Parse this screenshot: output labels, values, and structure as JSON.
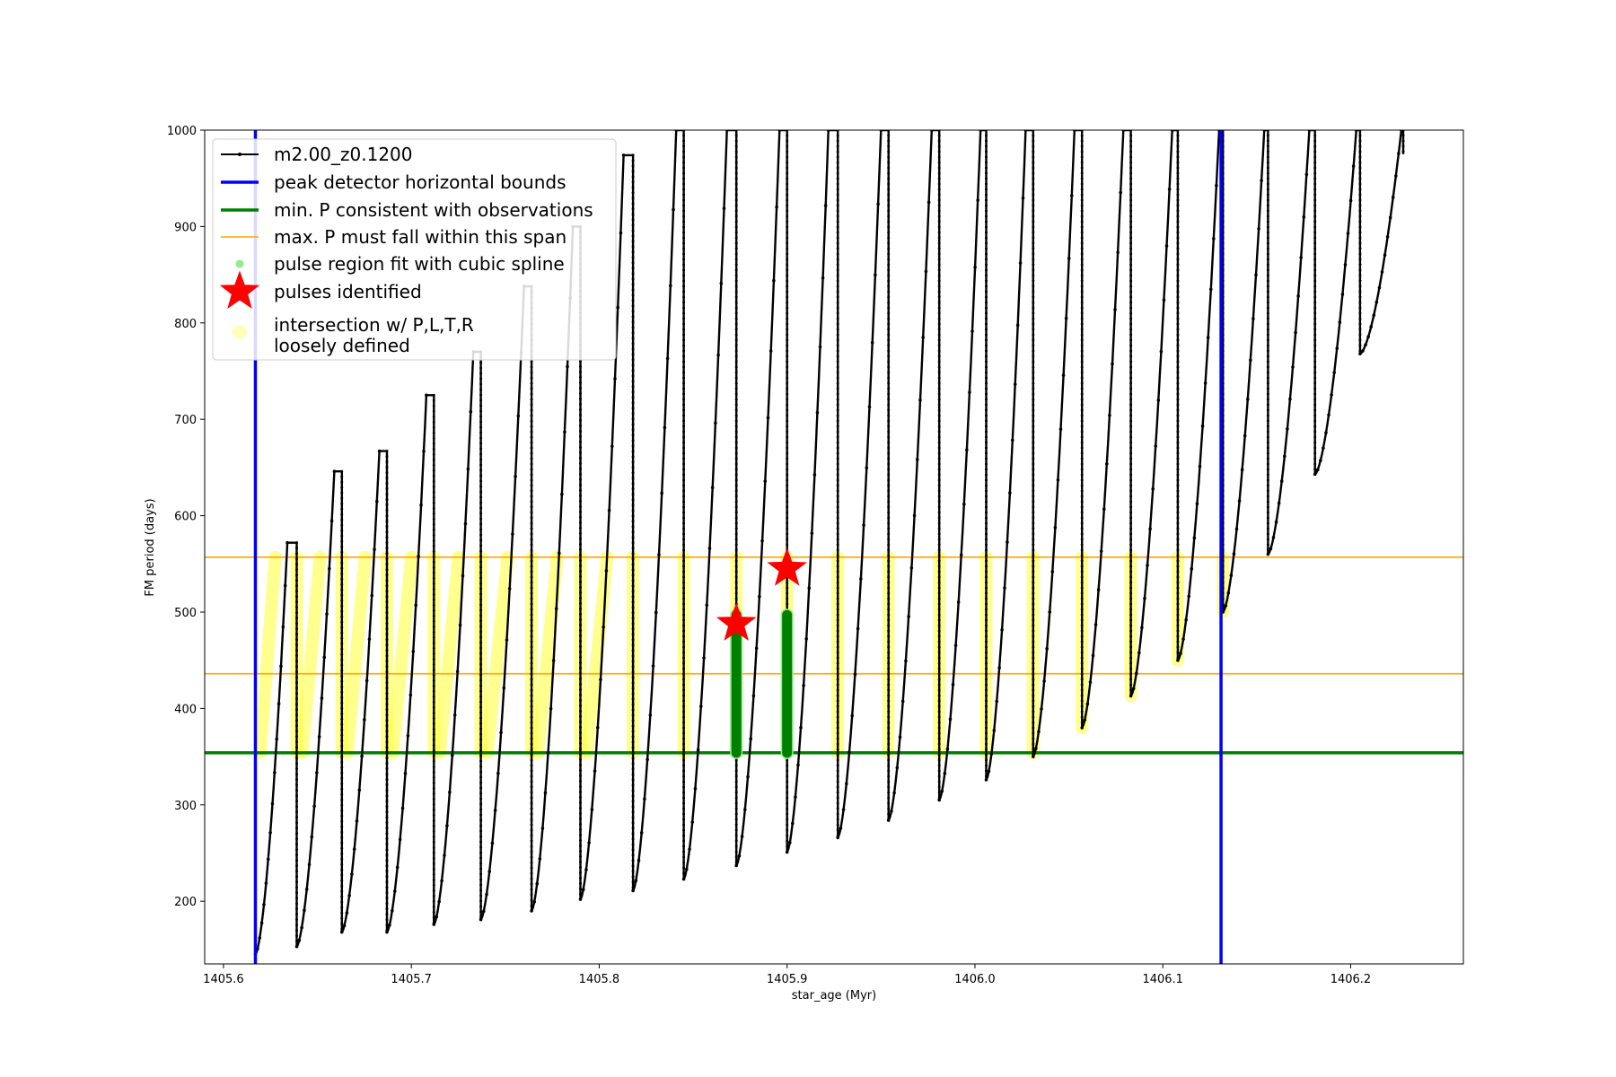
{
  "chart_data": {
    "type": "line",
    "xlabel": "star_age (Myr)",
    "ylabel": "FM period (days)",
    "xlim": [
      1405.59,
      1406.26
    ],
    "ylim": [
      135,
      1000
    ],
    "x_ticks": [
      1405.6,
      1405.7,
      1405.8,
      1405.9,
      1406.0,
      1406.1,
      1406.2
    ],
    "x_tick_labels": [
      "1405.6",
      "1405.7",
      "1405.8",
      "1405.9",
      "1406.0",
      "1406.1",
      "1406.2"
    ],
    "y_ticks": [
      200,
      300,
      400,
      500,
      600,
      700,
      800,
      900,
      1000
    ],
    "y_tick_labels": [
      "200",
      "300",
      "400",
      "500",
      "600",
      "700",
      "800",
      "900",
      "1000"
    ],
    "grid": false,
    "legend_position": "top-left",
    "legend": [
      {
        "label": "m2.00_z0.1200",
        "marker": "line-dot",
        "color": "#000000"
      },
      {
        "label": "peak detector horizontal bounds",
        "marker": "line",
        "color": "#0000ff"
      },
      {
        "label": "min. P consistent with observations",
        "marker": "line",
        "color": "#008000"
      },
      {
        "label": "max. P must fall within this span",
        "marker": "thin-line",
        "color": "#ffa500"
      },
      {
        "label": "pulse region fit with cubic spline",
        "marker": "dot",
        "color": "#90ee90"
      },
      {
        "label": "pulses identified",
        "marker": "star",
        "color": "#ff0000"
      },
      {
        "label": "intersection w/ P,L,T,R\nloosely defined",
        "marker": "circle",
        "color": "#ffffa0"
      }
    ],
    "vlines": [
      {
        "x": 1405.617,
        "color": "#0000ff"
      },
      {
        "x": 1406.131,
        "color": "#0000ff"
      }
    ],
    "hlines": [
      {
        "y": 354,
        "color": "#008000",
        "role": "min"
      },
      {
        "y": 436,
        "color": "#ffa500",
        "role": "max-low"
      },
      {
        "y": 557,
        "color": "#ffa500",
        "role": "max-high"
      }
    ],
    "cycles": [
      {
        "start": 1405.617,
        "peak_x": 1405.634,
        "peak": 572,
        "drop": 1405.639,
        "drop_min": 153,
        "start_y": 145
      },
      {
        "start": 1405.639,
        "peak_x": 1405.659,
        "peak": 646,
        "drop": 1405.663,
        "drop_min": 168,
        "start_y": 153
      },
      {
        "start": 1405.663,
        "peak_x": 1405.683,
        "peak": 667,
        "drop": 1405.687,
        "drop_min": 168,
        "start_y": 168
      },
      {
        "start": 1405.687,
        "peak_x": 1405.708,
        "peak": 725,
        "drop": 1405.712,
        "drop_min": 176,
        "start_y": 168
      },
      {
        "start": 1405.712,
        "peak_x": 1405.733,
        "peak": 770,
        "drop": 1405.737,
        "drop_min": 181,
        "start_y": 176
      },
      {
        "start": 1405.737,
        "peak_x": 1405.76,
        "peak": 838,
        "drop": 1405.764,
        "drop_min": 190,
        "start_y": 181
      },
      {
        "start": 1405.764,
        "peak_x": 1405.786,
        "peak": 900,
        "drop": 1405.79,
        "drop_min": 202,
        "start_y": 190
      },
      {
        "start": 1405.79,
        "peak_x": 1405.813,
        "peak": 974,
        "drop": 1405.818,
        "drop_min": 211,
        "start_y": 202
      },
      {
        "start": 1405.818,
        "peak_x": 1405.841,
        "peak": 1000,
        "drop": 1405.845,
        "drop_min": 223,
        "start_y": 211
      },
      {
        "start": 1405.845,
        "peak_x": 1405.868,
        "peak": 1000,
        "drop": 1405.873,
        "drop_min": 237,
        "start_y": 223
      },
      {
        "start": 1405.873,
        "peak_x": 1405.896,
        "peak": 1000,
        "drop": 1405.9,
        "drop_min": 251,
        "start_y": 237
      },
      {
        "start": 1405.9,
        "peak_x": 1405.922,
        "peak": 1000,
        "drop": 1405.927,
        "drop_min": 266,
        "start_y": 251
      },
      {
        "start": 1405.927,
        "peak_x": 1405.95,
        "peak": 1000,
        "drop": 1405.954,
        "drop_min": 284,
        "start_y": 266
      },
      {
        "start": 1405.954,
        "peak_x": 1405.977,
        "peak": 1000,
        "drop": 1405.981,
        "drop_min": 305,
        "start_y": 284
      },
      {
        "start": 1405.981,
        "peak_x": 1406.003,
        "peak": 1000,
        "drop": 1406.006,
        "drop_min": 326,
        "start_y": 305
      },
      {
        "start": 1406.006,
        "peak_x": 1406.027,
        "peak": 1000,
        "drop": 1406.031,
        "drop_min": 350,
        "start_y": 326
      },
      {
        "start": 1406.031,
        "peak_x": 1406.053,
        "peak": 1000,
        "drop": 1406.057,
        "drop_min": 380,
        "start_y": 350
      },
      {
        "start": 1406.057,
        "peak_x": 1406.079,
        "peak": 1000,
        "drop": 1406.083,
        "drop_min": 413,
        "start_y": 380
      },
      {
        "start": 1406.083,
        "peak_x": 1406.105,
        "peak": 1000,
        "drop": 1406.108,
        "drop_min": 450,
        "start_y": 413
      },
      {
        "start": 1406.108,
        "peak_x": 1406.13,
        "peak": 1000,
        "drop": 1406.132,
        "drop_min": 500,
        "start_y": 450
      },
      {
        "start": 1406.132,
        "peak_x": 1406.154,
        "peak": 1000,
        "drop": 1406.156,
        "drop_min": 560,
        "start_y": 500
      },
      {
        "start": 1406.156,
        "peak_x": 1406.178,
        "peak": 1000,
        "drop": 1406.181,
        "drop_min": 643,
        "start_y": 560
      },
      {
        "start": 1406.181,
        "peak_x": 1406.203,
        "peak": 1000,
        "drop": 1406.205,
        "drop_min": 768,
        "start_y": 643
      },
      {
        "start": 1406.205,
        "peak_x": 1406.227,
        "peak": 1000,
        "drop": 1406.228,
        "drop_min": 975,
        "start_y": 768
      }
    ],
    "green_pulse_columns": [
      {
        "x": 1405.873,
        "y_min": 354,
        "y_max": 497
      },
      {
        "x": 1405.9,
        "y_min": 354,
        "y_max": 497
      }
    ],
    "pulses_identified": [
      {
        "x": 1405.873,
        "y": 488
      },
      {
        "x": 1405.9,
        "y": 545
      }
    ]
  }
}
